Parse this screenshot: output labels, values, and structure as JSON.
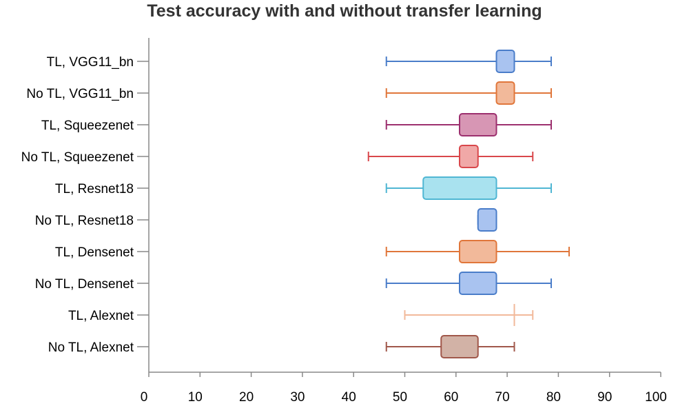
{
  "chart_data": {
    "type": "boxplot",
    "title": "Test accuracy with and without transfer learning",
    "orientation": "horizontal",
    "xlim": [
      0,
      100
    ],
    "xticks": [
      0,
      10,
      20,
      30,
      40,
      50,
      60,
      70,
      80,
      90,
      100
    ],
    "xlabel": "",
    "ylabel": "",
    "grid": false,
    "categories": [
      "TL, VGG11_bn",
      "No TL, VGG11_bn",
      "TL, Squeezenet",
      "No TL, Squeezenet",
      "TL, Resnet18",
      "No TL, Resnet18",
      "TL, Densenet",
      "No TL, Densenet",
      "TL, Alexnet",
      "No TL, Alexnet"
    ],
    "series": [
      {
        "category": "TL, VGG11_bn",
        "min": 46.4,
        "q1": 67.9,
        "q3": 71.4,
        "max": 78.6,
        "stroke": "#4a7dc9",
        "fill": "#a9c3f0"
      },
      {
        "category": "No TL, VGG11_bn",
        "min": 46.4,
        "q1": 67.9,
        "q3": 71.4,
        "max": 78.6,
        "stroke": "#e0763a",
        "fill": "#f2b99a"
      },
      {
        "category": "TL, Squeezenet",
        "min": 46.4,
        "q1": 60.7,
        "q3": 67.9,
        "max": 78.6,
        "stroke": "#9c2f6e",
        "fill": "#d796b4"
      },
      {
        "category": "No TL, Squeezenet",
        "min": 42.9,
        "q1": 60.7,
        "q3": 64.3,
        "max": 75.0,
        "stroke": "#d9474b",
        "fill": "#f0a8a7"
      },
      {
        "category": "TL, Resnet18",
        "min": 46.4,
        "q1": 53.6,
        "q3": 67.9,
        "max": 78.6,
        "stroke": "#4fb6d3",
        "fill": "#a9e2ef"
      },
      {
        "category": "No TL, Resnet18",
        "min": 64.3,
        "q1": 64.3,
        "q3": 67.9,
        "max": 67.9,
        "stroke": "#4a7dc9",
        "fill": "#a9c3f0"
      },
      {
        "category": "TL, Densenet",
        "min": 46.4,
        "q1": 60.7,
        "q3": 67.9,
        "max": 82.1,
        "stroke": "#e0763a",
        "fill": "#f2b99a"
      },
      {
        "category": "No TL, Densenet",
        "min": 46.4,
        "q1": 60.7,
        "q3": 67.9,
        "max": 78.6,
        "stroke": "#4a7dc9",
        "fill": "#a9c3f0"
      },
      {
        "category": "TL, Alexnet",
        "min": 50.0,
        "q1": 71.4,
        "q3": 71.4,
        "max": 75.0,
        "stroke": "#f2b99a",
        "fill": "#f2b99a"
      },
      {
        "category": "No TL, Alexnet",
        "min": 46.4,
        "q1": 57.1,
        "q3": 64.3,
        "max": 71.4,
        "stroke": "#a0574a",
        "fill": "#d2b2a6"
      }
    ]
  }
}
